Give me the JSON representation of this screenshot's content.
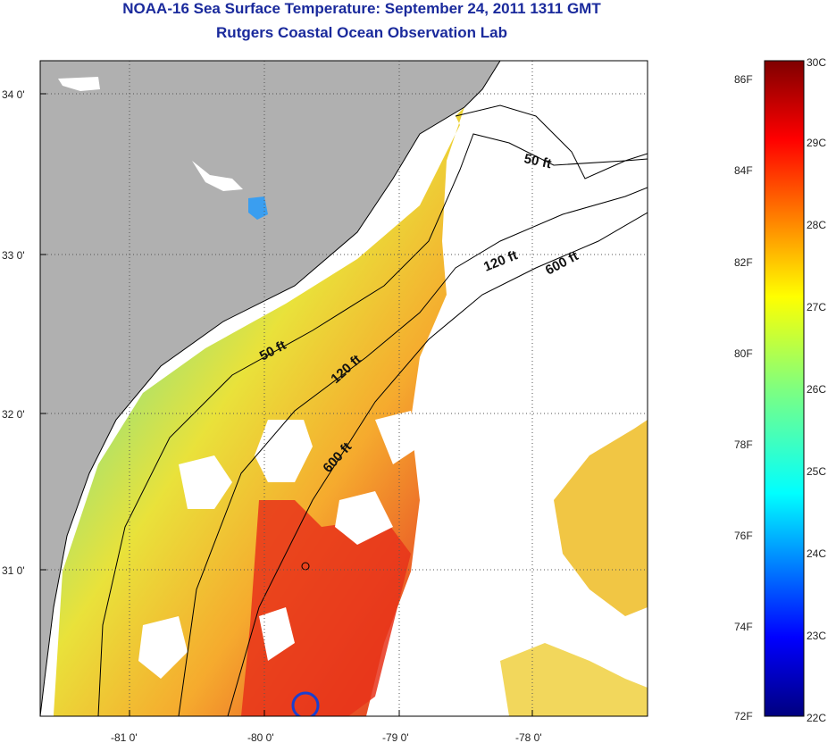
{
  "title_line1": "NOAA-16 Sea Surface Temperature:  September 24, 2011 1311 GMT",
  "title_line2": "Rutgers Coastal Ocean Observation Lab",
  "map": {
    "lon_ticks": [
      "-81 0'",
      "-80 0'",
      "-79 0'",
      "-78 0'"
    ],
    "lat_ticks": [
      "34 0'",
      "33 0'",
      "32 0'",
      "31 0'"
    ],
    "contour_labels": [
      "50 ft",
      "120 ft",
      "600 ft",
      "50 ft",
      "120 ft",
      "600 ft"
    ],
    "land_color": "#b0b0b0",
    "cloud_color": "#ffffff"
  },
  "colorbar": {
    "fahrenheit_labels": [
      "86F",
      "84F",
      "82F",
      "80F",
      "78F",
      "76F",
      "74F",
      "72F"
    ],
    "celsius_labels": [
      "30C",
      "29C",
      "28C",
      "27C",
      "26C",
      "25C",
      "24C",
      "23C",
      "22C"
    ],
    "colormap": "jet"
  }
}
